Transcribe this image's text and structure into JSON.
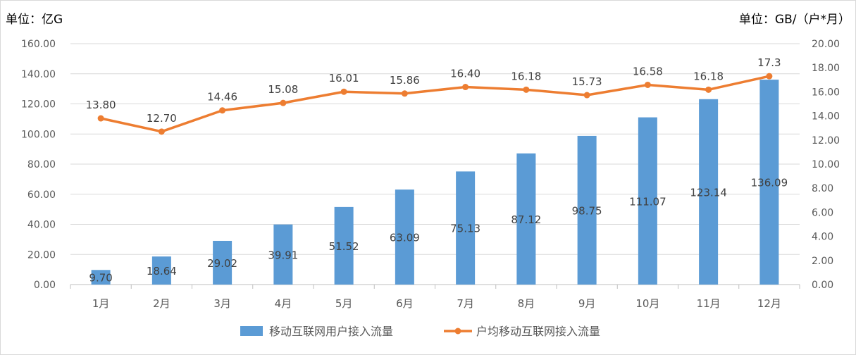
{
  "chart_data": {
    "type": "bar+line",
    "categories": [
      "1月",
      "2月",
      "3月",
      "4月",
      "5月",
      "6月",
      "7月",
      "8月",
      "9月",
      "10月",
      "11月",
      "12月"
    ],
    "y_left": {
      "unit_label": "单位：亿G",
      "lim": [
        0,
        160
      ],
      "ticks": [
        "0.00",
        "20.00",
        "40.00",
        "60.00",
        "80.00",
        "100.00",
        "120.00",
        "140.00",
        "160.00"
      ]
    },
    "y_right": {
      "unit_label": "单位：GB/（户*月）",
      "lim": [
        0,
        20
      ],
      "ticks": [
        "0.00",
        "2.00",
        "4.00",
        "6.00",
        "8.00",
        "10.00",
        "12.00",
        "14.00",
        "16.00",
        "18.00",
        "20.00"
      ]
    },
    "series": [
      {
        "name": "移动互联网用户接入流量",
        "kind": "bar",
        "axis": "left",
        "color": "#5b9bd5",
        "values": [
          9.7,
          18.64,
          29.02,
          39.91,
          51.52,
          63.09,
          75.13,
          87.12,
          98.75,
          111.07,
          123.14,
          136.09
        ],
        "labels": [
          "9.70",
          "18.64",
          "29.02",
          "39.91",
          "51.52",
          "63.09",
          "75.13",
          "87.12",
          "98.75",
          "111.07",
          "123.14",
          "136.09"
        ]
      },
      {
        "name": "户均移动互联网接入流量",
        "kind": "line",
        "axis": "right",
        "color": "#ed7d31",
        "values": [
          13.8,
          12.7,
          14.46,
          15.08,
          16.01,
          15.86,
          16.4,
          16.18,
          15.73,
          16.58,
          16.18,
          17.3
        ],
        "labels": [
          "13.80",
          "12.70",
          "14.46",
          "15.08",
          "16.01",
          "15.86",
          "16.40",
          "16.18",
          "15.73",
          "16.58",
          "16.18",
          "17.3"
        ]
      }
    ],
    "grid": true,
    "legend": "bottom"
  }
}
